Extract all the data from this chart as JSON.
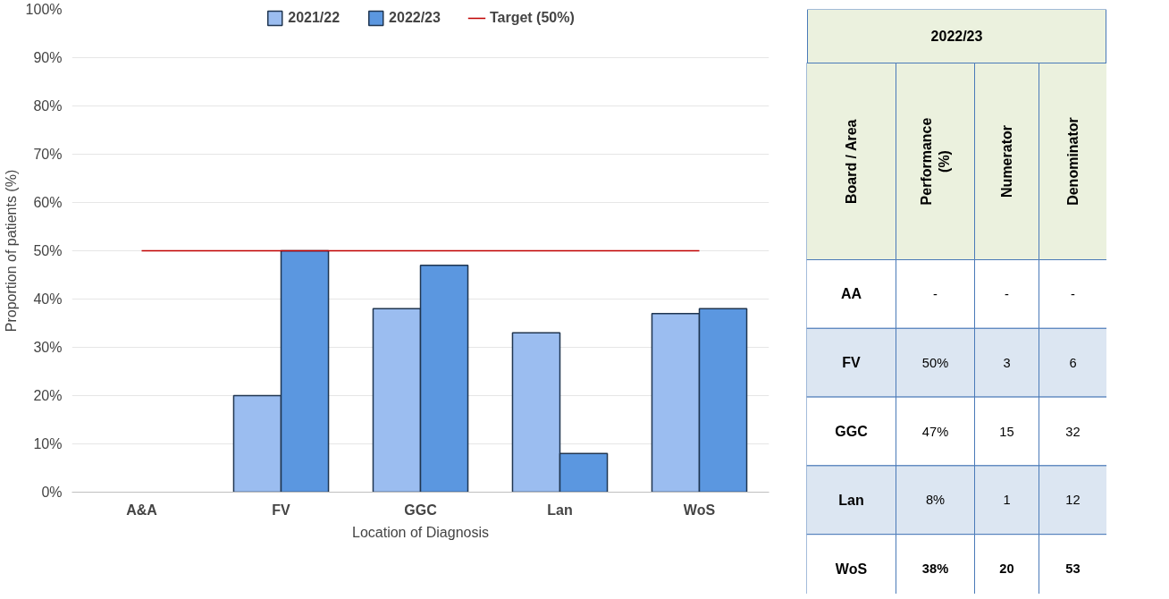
{
  "chart_data": [
    {
      "type": "bar",
      "xlabel": "Location of Diagnosis",
      "ylabel": "Proportion of patients (%)",
      "categories": [
        "A&A",
        "FV",
        "GGC",
        "Lan",
        "WoS"
      ],
      "series": [
        {
          "name": "2021/22",
          "color": "#9bbdf0",
          "values": [
            null,
            20,
            38,
            33,
            37
          ]
        },
        {
          "name": "2022/23",
          "color": "#5b97e0",
          "values": [
            null,
            50,
            47,
            8,
            38
          ]
        }
      ],
      "ylim": [
        0,
        100
      ],
      "yticks": [
        {
          "value": 0,
          "label": "0%"
        },
        {
          "value": 10,
          "label": "10%"
        },
        {
          "value": 20,
          "label": "20%"
        },
        {
          "value": 30,
          "label": "30%"
        },
        {
          "value": 40,
          "label": "40%"
        },
        {
          "value": 50,
          "label": "50%"
        },
        {
          "value": 60,
          "label": "60%"
        },
        {
          "value": 70,
          "label": "70%"
        },
        {
          "value": 80,
          "label": "80%"
        },
        {
          "value": 90,
          "label": "90%"
        },
        {
          "value": 100,
          "label": "100%"
        }
      ],
      "ref_lines": [
        {
          "axis": "y",
          "value": 50,
          "label": "Target (50%)",
          "color": "#c00000"
        }
      ],
      "grid": "y",
      "legend": "top"
    },
    {
      "type": "other",
      "title": "2022/23",
      "annotations": [
        "Board / Area",
        "Performance (%)",
        "Numerator",
        "Denominator",
        "AA",
        "-",
        "-",
        "-",
        "FV",
        "50%",
        "3",
        "6",
        "GGC",
        "47%",
        "15",
        "32",
        "Lan",
        "8%",
        "1",
        "12",
        "WoS",
        "38%",
        "20",
        "53"
      ]
    }
  ]
}
